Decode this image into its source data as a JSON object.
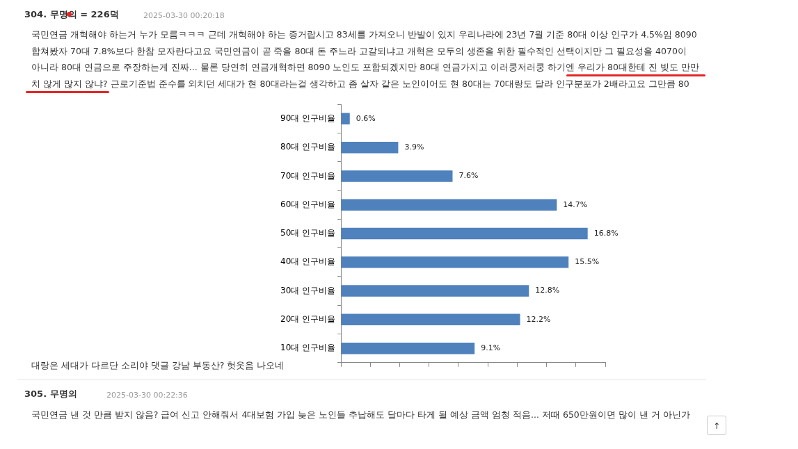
{
  "chart_data": {
    "type": "bar",
    "orientation": "horizontal",
    "categories": [
      "90대 인구비율",
      "80대 인구비율",
      "70대 인구비율",
      "60대 인구비율",
      "50대 인구비율",
      "40대 인구비율",
      "30대 인구비율",
      "20대 인구비율",
      "10대 인구비율"
    ],
    "values": [
      0.6,
      3.9,
      7.6,
      14.7,
      16.8,
      15.5,
      12.8,
      12.2,
      9.1
    ],
    "value_labels": [
      "0.6%",
      "3.9%",
      "7.6%",
      "14.7%",
      "16.8%",
      "15.5%",
      "12.8%",
      "12.2%",
      "9.1%"
    ],
    "color": "#4f81bd",
    "xlim": [
      0,
      18
    ],
    "xticks": [
      {
        "value": 0,
        "label": null
      },
      {
        "value": 2,
        "label": null
      },
      {
        "value": 4,
        "label": null
      },
      {
        "value": 6,
        "label": null
      },
      {
        "value": 8,
        "label": null
      },
      {
        "value": 10,
        "label": null
      },
      {
        "value": 12,
        "label": null
      },
      {
        "value": 14,
        "label": null
      },
      {
        "value": 16,
        "label": null
      },
      {
        "value": 18,
        "label": null
      }
    ],
    "tick_labels": "y",
    "grid": false,
    "legend": false,
    "annotations": [
      "304. 무명의 = 226덕",
      "2025-03-30 00:20:18",
      "국민연금 개혁해야 하는거 누가 모름ㅋㅋㅋ 근데 개혁해야 하는 증거랍시고 83세를 가져오니 반발이 있지 우리나라에 23년 7월 기준 80대 이상 인구가 4.5%임 8090",
      "합쳐봤자 70대 7.8%보다 한참 모자란다고요 국민연금이 곧 죽을 80대 돈 주느라 고갈되냐고 개혁은 모두의 생존을 위한 필수적인 선택이지만 그 필요성을 4070이",
      "아니라 80대 연금으로 주장하는게 진짜... 물론 당연히 연금개혁하면 8090 노인도 포함되겠지만 80대 연금가지고 이러쿵저러쿵 하기엔 우리가 80대한테 진 빚도 만만",
      "치 않게 많지 않냐? 근로기준법 준수를 외치던 세대가 현 80대라는걸 생각하고 좀 살자 같은 노인이어도 현 80대는 70대랑도 달라 인구분포가 2배라고요 그만큼 80",
      "대랑은 세대가 다르단 소리야 댓글 강남 부동산? 헛웃음 나오네",
      "305. 무명의",
      "2025-03-30 00:22:36",
      "국민연금 낸 것 만큼 받지 않음? 급여 신고 안해줘서 4대보험 가입 늦은 노인들 추납해도 달마다 타게 될 예상 금액 엄청 적음... 저때 650만원이면 많이 낸 거 아닌가",
      "↑"
    ]
  }
}
